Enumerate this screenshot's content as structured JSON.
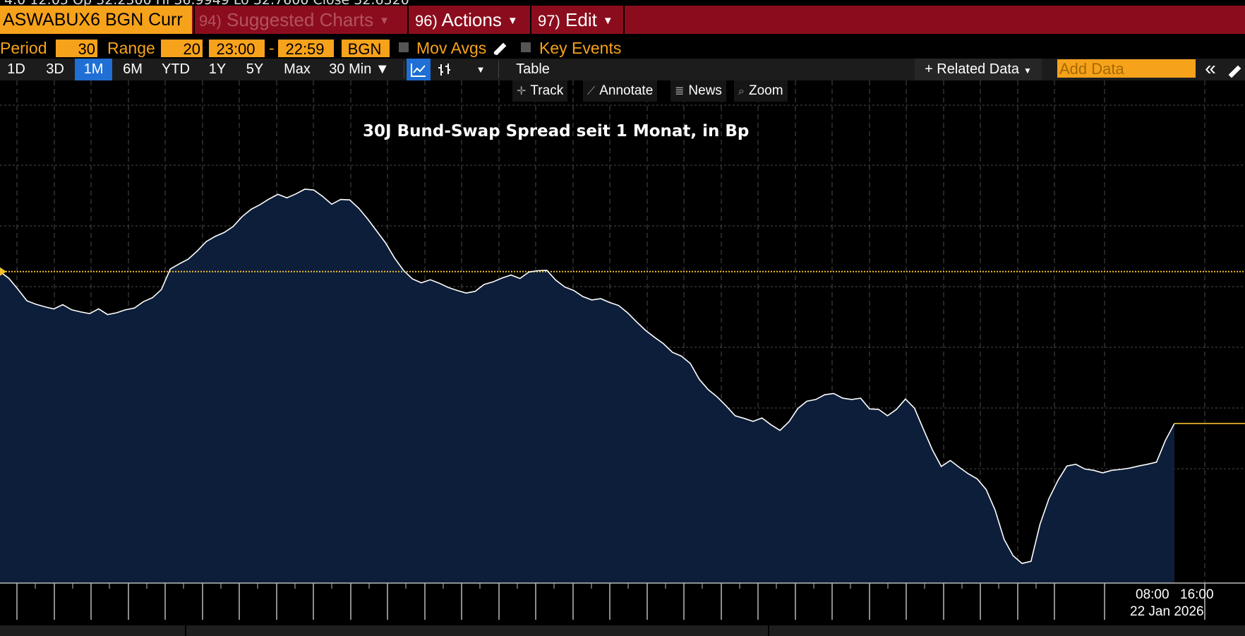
{
  "top_cut_text": "4.0 12:05 Op 32.2300 Hi 36.9949 Lo 32.7600 Close 32.6320",
  "header": {
    "security": "ASWABUX6 BGN Curr",
    "menus": [
      {
        "num": "94)",
        "label": "Suggested Charts",
        "dim": true
      },
      {
        "num": "96)",
        "label": "Actions",
        "dim": false
      },
      {
        "num": "97)",
        "label": "Edit",
        "dim": false
      }
    ]
  },
  "params": {
    "period_label": "Period",
    "period_value": "30",
    "range_label": "Range",
    "range_value": "20",
    "time_from": "23:00",
    "dash": "-",
    "time_to": "22:59",
    "source": "BGN",
    "mov_avgs": "Mov Avgs",
    "key_events": "Key Events"
  },
  "toolbar": {
    "ranges": [
      "1D",
      "3D",
      "1M",
      "6M",
      "YTD",
      "1Y",
      "5Y",
      "Max"
    ],
    "active_range": "1M",
    "interval": "30 Min ▼",
    "table": "Table",
    "related_data": "+ Related Data",
    "add_data_placeholder": "Add Data",
    "collapse": "«"
  },
  "chart_tools": {
    "track": "Track",
    "annotate": "Annotate",
    "news": "News",
    "zoom": "Zoom"
  },
  "colors": {
    "accent": "#f7a21b",
    "command_bar": "#8b0d1d",
    "area_fill": "#0d1e3a",
    "line": "#ffffff",
    "reference_line": "#f2c12e",
    "active_button": "#1f6fd4"
  },
  "chart_data": {
    "type": "area",
    "title": "30J Bund-Swap Spread seit 1 Monat, in Bp",
    "xlabel": "",
    "ylabel": "",
    "y_axis_visible": false,
    "x_tick_labels": [
      "08:00",
      "16:00"
    ],
    "x_date_label": "22 Jan 2026",
    "ylim": [
      0,
      100
    ],
    "reference_level": 70.6,
    "last_value": 35.2,
    "values": [
      70.6,
      69.0,
      66.5,
      63.8,
      63.0,
      62.4,
      61.9,
      62.9,
      61.7,
      61.2,
      60.8,
      61.9,
      60.6,
      61.0,
      61.7,
      62.1,
      63.6,
      64.5,
      66.4,
      71.2,
      72.4,
      73.5,
      75.4,
      77.6,
      78.8,
      79.7,
      81.1,
      83.4,
      85.1,
      86.2,
      87.5,
      88.6,
      87.8,
      88.7,
      89.8,
      89.6,
      88.1,
      86.3,
      87.4,
      87.3,
      85.4,
      82.9,
      80.1,
      77.3,
      73.8,
      70.9,
      68.9,
      68.0,
      68.7,
      67.9,
      66.9,
      66.2,
      65.6,
      66.0,
      67.6,
      68.2,
      69.1,
      69.8,
      69.0,
      70.5,
      70.8,
      70.9,
      68.6,
      67.0,
      66.2,
      64.8,
      64.0,
      64.3,
      63.4,
      62.7,
      61.0,
      58.9,
      56.9,
      55.3,
      53.8,
      51.8,
      50.9,
      49.2,
      45.5,
      43.1,
      41.4,
      39.3,
      37.0,
      36.4,
      35.7,
      36.5,
      34.9,
      33.6,
      35.6,
      38.7,
      40.4,
      40.8,
      41.9,
      42.2,
      41.1,
      40.8,
      41.1,
      38.6,
      38.5,
      37.0,
      38.5,
      40.9,
      38.8,
      33.9,
      29.1,
      25.2,
      26.6,
      25.0,
      23.5,
      22.3,
      19.8,
      15.0,
      8.2,
      4.4,
      2.6,
      3.1,
      11.7,
      17.7,
      21.9,
      25.3,
      25.7,
      24.6,
      24.3,
      23.7,
      24.3,
      24.5,
      24.8,
      25.3,
      25.7,
      26.2,
      31.3,
      35.2
    ]
  }
}
